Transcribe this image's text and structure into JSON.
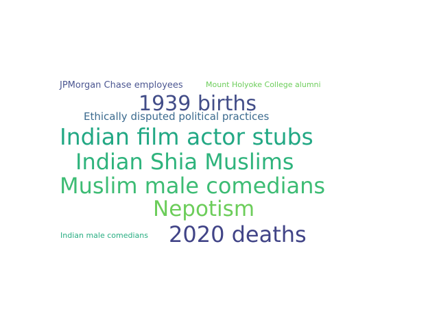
{
  "words": [
    {
      "text": "JPMorgan Chase employees",
      "color": "#4b5691"
    },
    {
      "text": "Mount Holyoke College alumni",
      "color": "#6ccd5a"
    },
    {
      "text": "1939 births",
      "color": "#424d88"
    },
    {
      "text": "Ethically disputed political practices",
      "color": "#3b6a8e"
    },
    {
      "text": "Indian film actor stubs",
      "color": "#22a884"
    },
    {
      "text": "Indian Shia Muslims",
      "color": "#2eb37c"
    },
    {
      "text": "Muslim male comedians",
      "color": "#3dbc74"
    },
    {
      "text": "Nepotism",
      "color": "#6ccd5a"
    },
    {
      "text": "Indian male comedians",
      "color": "#27ad81"
    },
    {
      "text": "2020 deaths",
      "color": "#414487"
    }
  ]
}
